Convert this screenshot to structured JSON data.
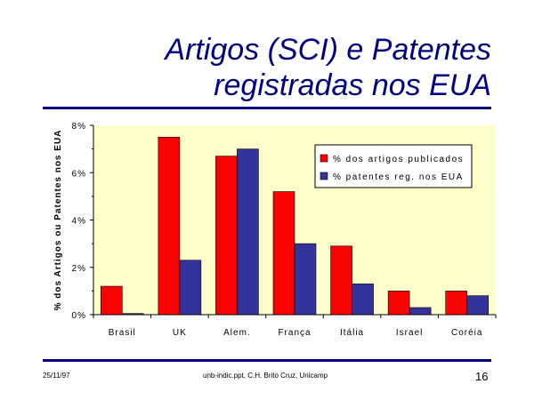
{
  "slide": {
    "title_line1": "Artigos (SCI) e Patentes",
    "title_line2": "registradas nos EUA",
    "footer_date": "25/11/97",
    "footer_source": "unb-indic.ppt, C.H. Brito Cruz, Unicamp",
    "page_number": "16"
  },
  "colors": {
    "title": "#000080",
    "rule": "#000080",
    "plot_bg": "#FFFFCC",
    "series1": "#FF0000",
    "series2": "#333399"
  },
  "chart_data": {
    "type": "bar",
    "title": "",
    "xlabel": "",
    "ylabel": "% dos Artigos ou Patentes nos EUA",
    "categories": [
      "Brasil",
      "UK",
      "Alem.",
      "França",
      "Itália",
      "Israel",
      "Coréia"
    ],
    "series": [
      {
        "name": "% dos artigos publicados",
        "color": "#FF0000",
        "values": [
          1.2,
          7.5,
          6.7,
          5.2,
          2.9,
          1.0,
          1.0
        ]
      },
      {
        "name": "% patentes reg. nos EUA",
        "color": "#333399",
        "values": [
          0.05,
          2.3,
          7.0,
          3.0,
          1.3,
          0.3,
          0.8
        ]
      }
    ],
    "ylim": [
      0,
      8
    ],
    "yticks": [
      0,
      2,
      4,
      6,
      8
    ],
    "ytick_labels": [
      "0%",
      "2%",
      "4%",
      "6%",
      "8%"
    ],
    "grid": false,
    "legend_position": "top-right"
  }
}
